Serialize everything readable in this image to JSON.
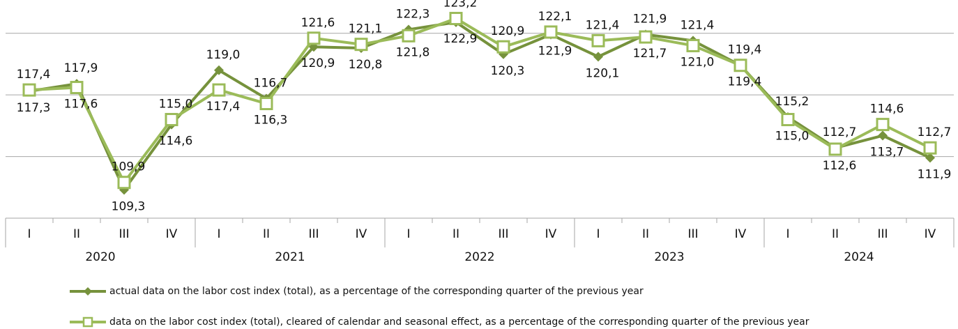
{
  "chart_data": {
    "type": "line",
    "categories": [
      "I",
      "II",
      "III",
      "IV",
      "I",
      "II",
      "III",
      "IV",
      "I",
      "II",
      "III",
      "IV",
      "I",
      "II",
      "III",
      "IV",
      "I",
      "II",
      "III",
      "IV"
    ],
    "groups": [
      "2020",
      "2021",
      "2022",
      "2023",
      "2024"
    ],
    "series": [
      {
        "name": "actual data on the labor cost index (total), as a percentage of the corresponding quarter of the previous year",
        "color": "#76923c",
        "marker": "diamond",
        "values": [
          117.3,
          117.9,
          109.3,
          114.6,
          119.0,
          116.7,
          120.9,
          120.8,
          122.3,
          122.9,
          120.3,
          121.9,
          120.1,
          121.9,
          121.4,
          119.4,
          115.2,
          112.7,
          113.7,
          111.9
        ],
        "value_labels": [
          "117,3",
          "117,9",
          "109,3",
          "114,6",
          "119,0",
          "116,7",
          "120,9",
          "120,8",
          "122,3",
          "122,9",
          "120,3",
          "121,9",
          "120,1",
          "121,9",
          "121,4",
          "119,4",
          "115,2",
          "112,7",
          "113,7",
          "111,9"
        ]
      },
      {
        "name": "data on the labor cost index (total), cleared of calendar and seasonal effect, as a percentage of the corresponding quarter of the previous year",
        "color": "#9bbb59",
        "marker": "square",
        "values": [
          117.4,
          117.6,
          109.9,
          115.0,
          117.4,
          116.3,
          121.6,
          121.1,
          121.8,
          123.2,
          120.9,
          122.1,
          121.4,
          121.7,
          121.0,
          119.4,
          115.0,
          112.6,
          114.6,
          112.7
        ],
        "value_labels": [
          "117,4",
          "117,6",
          "109,9",
          "115,0",
          "117,4",
          "116,3",
          "121,6",
          "121,1",
          "121,8",
          "123,2",
          "120,9",
          "122,1",
          "121,4",
          "121,7",
          "121,0",
          "119,4",
          "115,0",
          "112,6",
          "114,6",
          "112,7"
        ]
      }
    ],
    "ylim": [
      107,
      124.7
    ],
    "yticks": [
      107,
      112,
      117,
      122
    ],
    "grid": true
  }
}
